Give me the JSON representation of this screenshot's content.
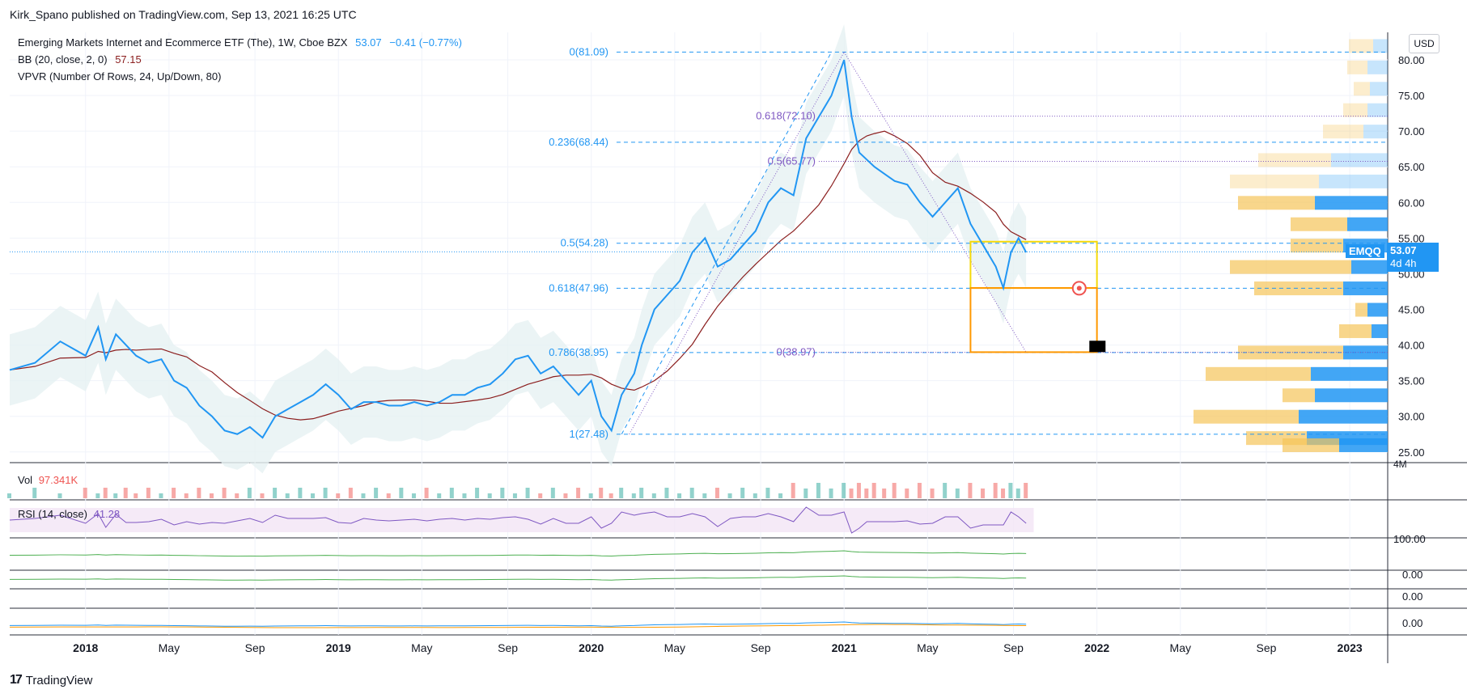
{
  "header": {
    "published_by": "Kirk_Spano published on TradingView.com, Sep 13, 2021 16:25 UTC"
  },
  "legend": {
    "symbol_name": "Emerging Markets Internet and Ecommerce ETF (The), 1W, Cboe BZX",
    "last_price": "53.07",
    "change": "−0.41 (−0.77%)",
    "bb_label": "BB (20, close, 2, 0)",
    "bb_value": "57.15",
    "vpvr_label": "VPVR (Number Of Rows, 24, Up/Down, 80)"
  },
  "currency_button": "USD",
  "price_tag": {
    "ticker": "EMQQ",
    "price": "53.07",
    "countdown": "4d 4h"
  },
  "volume_pane": {
    "label": "Vol",
    "value": "97.341K",
    "scale_label": "4M"
  },
  "rsi_pane": {
    "label": "RSI (14, close)",
    "value": "41.28"
  },
  "pane_scales": [
    "100.00",
    "0.00",
    "0.00",
    "0.00"
  ],
  "footer": {
    "brand": "TradingView",
    "logo_glyph": "17"
  },
  "colors": {
    "price_line": "#2196f3",
    "bb_basis": "#8b1e1e",
    "bb_fill": "#e6f1f3",
    "fib_line": "#2196f3",
    "fib_purple": "#7e57c2",
    "yellow_box": "#f5d90a",
    "orange_box": "#ff9800",
    "vol_up": "#26a69a",
    "vol_down": "#ef5350",
    "vpvr_up": "#2196f3",
    "vpvr_down": "#f5c45a"
  },
  "chart_data": {
    "type": "line",
    "symbol": "EMQQ",
    "interval": "1W",
    "y_axis": {
      "ticks": [
        "80.00",
        "75.00",
        "70.00",
        "65.00",
        "60.00",
        "55.00",
        "50.00",
        "45.00",
        "40.00",
        "35.00",
        "30.00",
        "25.00"
      ],
      "range": [
        23.5,
        82.5
      ]
    },
    "x_axis": {
      "ticks": [
        "2018",
        "May",
        "Sep",
        "2019",
        "May",
        "Sep",
        "2020",
        "May",
        "Sep",
        "2021",
        "May",
        "Sep",
        "2022",
        "May",
        "Sep",
        "2023"
      ],
      "range_years": [
        2017.7,
        2023.15
      ]
    },
    "series": [
      {
        "x": [
          2017.7,
          2017.8,
          2017.9,
          2018.0,
          2018.05,
          2018.08,
          2018.12,
          2018.16,
          2018.2,
          2018.25,
          2018.3,
          2018.35,
          2018.4,
          2018.45,
          2018.5,
          2018.55,
          2018.6,
          2018.65,
          2018.7,
          2018.75,
          2018.8,
          2018.85,
          2018.9,
          2018.95,
          2019.0,
          2019.05,
          2019.1,
          2019.15,
          2019.2,
          2019.25,
          2019.3,
          2019.35,
          2019.4,
          2019.45,
          2019.5,
          2019.55,
          2019.6,
          2019.65,
          2019.7,
          2019.75,
          2019.8,
          2019.85,
          2019.9,
          2019.95,
          2020.0,
          2020.04,
          2020.08,
          2020.12,
          2020.17,
          2020.2,
          2020.25,
          2020.3,
          2020.35,
          2020.4,
          2020.45,
          2020.5,
          2020.55,
          2020.6,
          2020.65,
          2020.7,
          2020.75,
          2020.8,
          2020.85,
          2020.9,
          2020.95,
          2021.0,
          2021.03,
          2021.06,
          2021.09,
          2021.12,
          2021.16,
          2021.2,
          2021.25,
          2021.3,
          2021.35,
          2021.4,
          2021.45,
          2021.5,
          2021.55,
          2021.6,
          2021.63,
          2021.66,
          2021.69,
          2021.72
        ],
        "y": [
          36.5,
          37.5,
          40.5,
          38.5,
          42.5,
          38,
          41.5,
          40,
          38.5,
          37.5,
          38,
          35,
          34,
          31.5,
          30,
          28,
          27.5,
          28.5,
          27,
          30,
          31,
          32,
          33,
          34.5,
          33,
          31,
          32,
          32,
          31.5,
          31.5,
          32,
          31.5,
          32,
          33,
          33,
          34,
          34.5,
          36,
          38,
          38.5,
          36,
          37,
          35,
          33,
          35,
          30,
          28,
          33,
          36,
          40,
          45,
          47,
          49,
          53,
          55,
          51,
          52,
          54,
          56,
          60,
          62,
          61,
          69,
          72,
          75,
          80,
          72,
          67,
          66,
          65,
          64,
          63,
          62.5,
          60,
          58,
          60,
          62,
          57,
          54,
          51,
          48,
          53,
          55,
          53
        ]
      }
    ],
    "overlays": {
      "bb_basis_value": 57.15,
      "fib_retracement_left": [
        {
          "label": "0(81.09)",
          "value": 81.09
        },
        {
          "label": "0.236(68.44)",
          "value": 68.44
        },
        {
          "label": "0.5(54.28)",
          "value": 54.28
        },
        {
          "label": "0.618(47.96)",
          "value": 47.96
        },
        {
          "label": "0.786(38.95)",
          "value": 38.95
        },
        {
          "label": "1(27.48)",
          "value": 27.48
        }
      ],
      "fib_retracement_right": [
        {
          "label": "0.618(72.10)",
          "value": 72.1
        },
        {
          "label": "0.5(65.77)",
          "value": 65.77
        },
        {
          "label": "0(38.97)",
          "value": 38.97
        }
      ]
    }
  }
}
